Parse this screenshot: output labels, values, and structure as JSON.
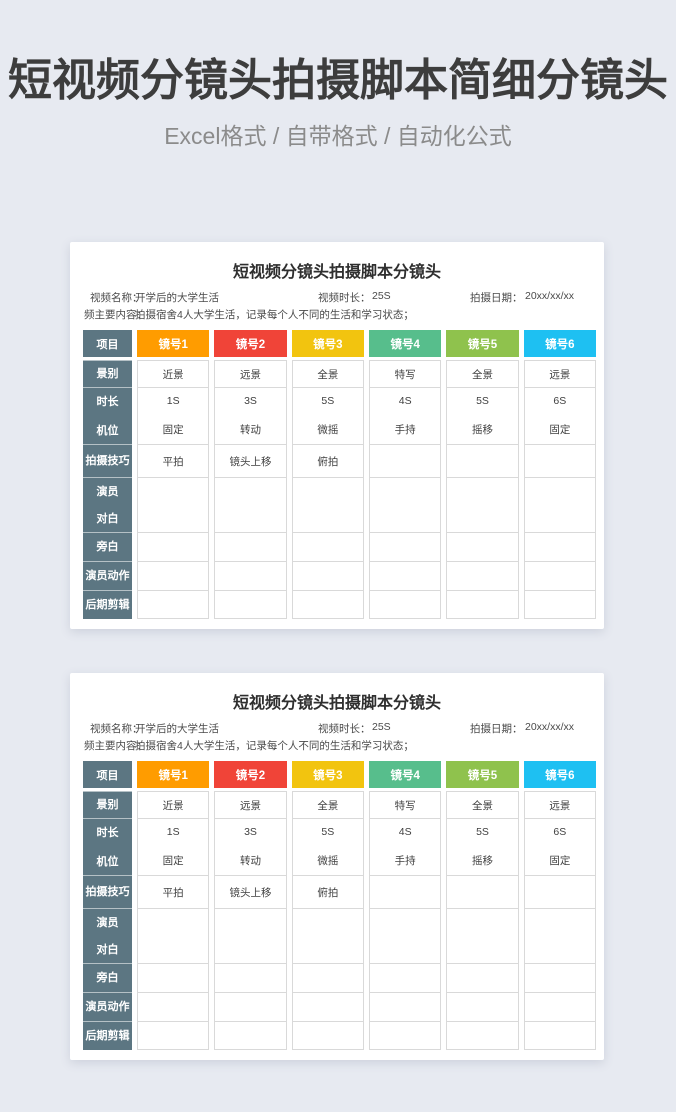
{
  "page": {
    "title": "短视频分镜头拍摄脚本简细分镜头",
    "subtitle": "Excel格式 / 自带格式 / 自动化公式",
    "background_color": "#e7eaf1"
  },
  "sheet": {
    "title": "短视频分镜头拍摄脚本分镜头",
    "info": {
      "name_label": "视频名称：",
      "name_value": "开学后的大学生活",
      "duration_label": "视频时长：",
      "duration_value": "25S",
      "date_label": "拍摄日期：",
      "date_value": "20xx/xx/xx",
      "content_label": "频主要内容：",
      "content_value": "拍摄宿舍4人大学生活，记录每个人不同的生活和学习状态；"
    },
    "corner_header": "项目",
    "label_column_color": "#5c7682",
    "columns": [
      {
        "label": "镜号1",
        "color": "#ff9c00"
      },
      {
        "label": "镜号2",
        "color": "#f04438"
      },
      {
        "label": "镜号3",
        "color": "#f2c40f"
      },
      {
        "label": "镜号4",
        "color": "#57be8c"
      },
      {
        "label": "镜号5",
        "color": "#8fc24d"
      },
      {
        "label": "镜号6",
        "color": "#1ec0f2"
      }
    ],
    "rows": [
      {
        "labels": [
          "景别"
        ],
        "values": [
          [
            "近景"
          ],
          [
            "远景"
          ],
          [
            "全景"
          ],
          [
            "特写"
          ],
          [
            "全景"
          ],
          [
            "远景"
          ]
        ]
      },
      {
        "labels": [
          "时长",
          "机位"
        ],
        "values": [
          [
            "1S",
            "固定"
          ],
          [
            "3S",
            "转动"
          ],
          [
            "5S",
            "微摇"
          ],
          [
            "4S",
            "手持"
          ],
          [
            "5S",
            "摇移"
          ],
          [
            "6S",
            "固定"
          ]
        ]
      },
      {
        "labels": [
          "拍摄技巧"
        ],
        "values": [
          [
            "平拍"
          ],
          [
            "镜头上移"
          ],
          [
            "俯拍"
          ],
          [
            ""
          ],
          [
            ""
          ],
          [
            ""
          ]
        ]
      },
      {
        "labels": [
          "演员",
          "对白"
        ],
        "values": [
          [
            ""
          ],
          [
            ""
          ],
          [
            ""
          ],
          [
            ""
          ],
          [
            ""
          ],
          [
            ""
          ]
        ]
      },
      {
        "labels": [
          "旁白"
        ],
        "values": [
          [
            ""
          ],
          [
            ""
          ],
          [
            ""
          ],
          [
            ""
          ],
          [
            ""
          ],
          [
            ""
          ]
        ]
      },
      {
        "labels": [
          "演员动作"
        ],
        "values": [
          [
            ""
          ],
          [
            ""
          ],
          [
            ""
          ],
          [
            ""
          ],
          [
            ""
          ],
          [
            ""
          ]
        ]
      },
      {
        "labels": [
          "后期剪辑"
        ],
        "values": [
          [
            ""
          ],
          [
            ""
          ],
          [
            ""
          ],
          [
            ""
          ],
          [
            ""
          ],
          [
            ""
          ]
        ]
      }
    ]
  }
}
